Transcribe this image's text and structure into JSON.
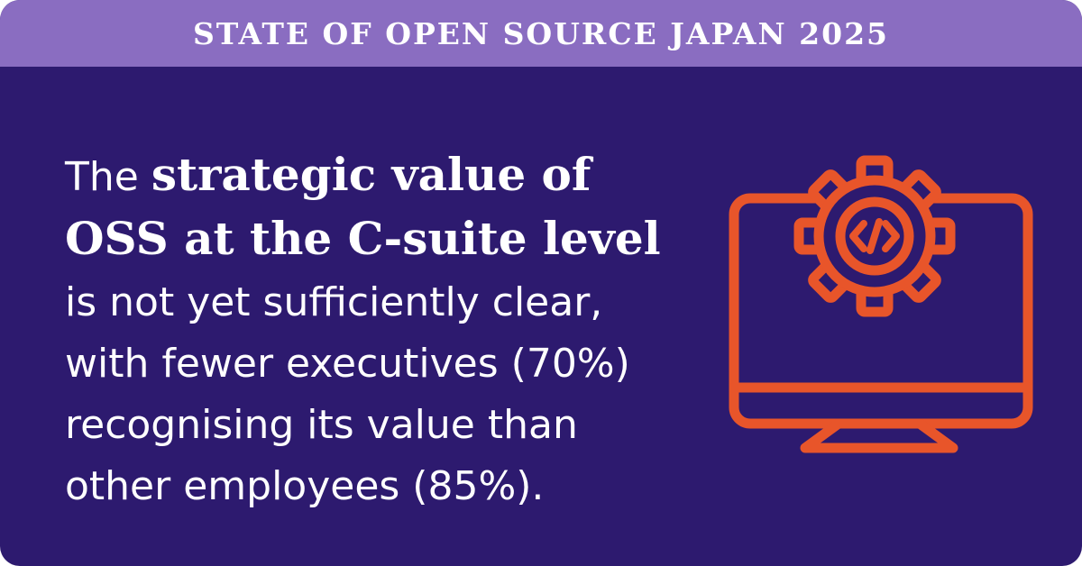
{
  "header": {
    "title": "STATE OF OPEN SOURCE JAPAN 2025"
  },
  "body": {
    "intro": "The",
    "highlight": "strategic value of OSS at the C-suite level",
    "rest": "is not yet sufficiently clear, with fewer executives (70%) recognising its value than other employees (85%)."
  }
}
